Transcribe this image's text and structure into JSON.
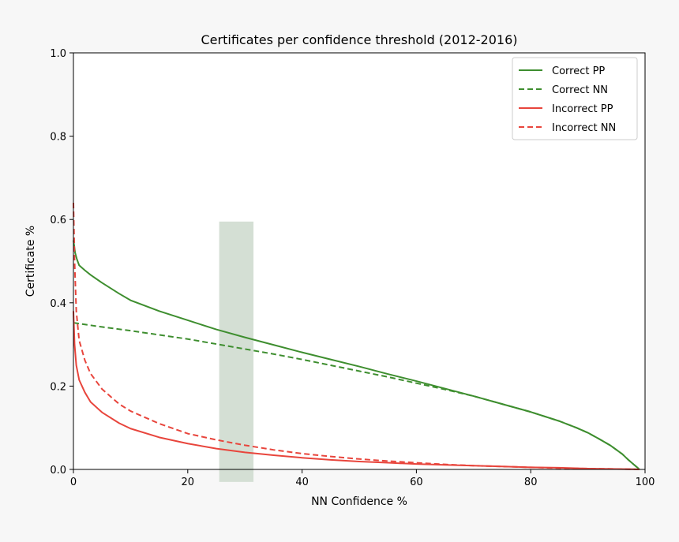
{
  "chart_data": {
    "type": "line",
    "title": "Certificates per confidence threshold (2012-2016)",
    "xlabel": "NN Confidence %",
    "ylabel": "Certificate %",
    "xlim": [
      0,
      100
    ],
    "ylim": [
      0.0,
      1.0
    ],
    "xticks": [
      0,
      20,
      40,
      60,
      80,
      100
    ],
    "xtick_labels": [
      "0",
      "20",
      "40",
      "60",
      "80",
      "100"
    ],
    "yticks": [
      0.0,
      0.2,
      0.4,
      0.6,
      0.8,
      1.0
    ],
    "ytick_labels": [
      "0.0",
      "0.2",
      "0.4",
      "0.6",
      "0.8",
      "1.0"
    ],
    "grid": false,
    "legend_position": "top-right",
    "highlight_band": {
      "x_range": [
        25.5,
        31.5
      ],
      "y_range": [
        -0.03,
        0.595
      ],
      "color": "#d4dfd4"
    },
    "series": [
      {
        "name": "Correct PP",
        "color": "#3e8e2f",
        "style": "solid",
        "x": [
          0,
          0.3,
          0.6,
          1,
          2,
          3,
          5,
          8,
          10,
          15,
          20,
          25,
          30,
          35,
          40,
          45,
          50,
          55,
          60,
          65,
          70,
          75,
          80,
          85,
          88,
          90,
          92,
          94,
          96,
          97,
          98,
          98.7,
          99
        ],
        "y": [
          0.55,
          0.52,
          0.505,
          0.49,
          0.478,
          0.467,
          0.448,
          0.422,
          0.406,
          0.38,
          0.358,
          0.336,
          0.317,
          0.299,
          0.281,
          0.264,
          0.247,
          0.229,
          0.212,
          0.194,
          0.176,
          0.157,
          0.138,
          0.116,
          0.1,
          0.088,
          0.073,
          0.057,
          0.037,
          0.024,
          0.012,
          0.004,
          0.0
        ]
      },
      {
        "name": "Correct NN",
        "color": "#3e8e2f",
        "style": "dashed",
        "x": [
          0,
          0.5,
          1,
          2,
          5,
          10,
          15,
          20,
          25,
          30,
          35,
          40,
          45,
          50,
          55,
          60,
          65,
          70,
          75,
          80,
          85,
          88,
          90,
          92,
          94,
          96,
          97,
          98,
          98.7,
          99
        ],
        "y": [
          0.352,
          0.351,
          0.35,
          0.348,
          0.342,
          0.333,
          0.323,
          0.313,
          0.301,
          0.289,
          0.277,
          0.264,
          0.25,
          0.236,
          0.222,
          0.207,
          0.192,
          0.176,
          0.157,
          0.138,
          0.116,
          0.1,
          0.088,
          0.073,
          0.057,
          0.037,
          0.024,
          0.012,
          0.004,
          0.0
        ]
      },
      {
        "name": "Incorrect PP",
        "color": "#e8453c",
        "style": "solid",
        "x": [
          0,
          0.2,
          0.5,
          1,
          2,
          3,
          5,
          8,
          10,
          15,
          20,
          25,
          30,
          35,
          40,
          45,
          50,
          55,
          60,
          65,
          70,
          75,
          80,
          85,
          90,
          95,
          98,
          99
        ],
        "y": [
          0.38,
          0.3,
          0.25,
          0.215,
          0.185,
          0.162,
          0.137,
          0.111,
          0.098,
          0.077,
          0.062,
          0.05,
          0.041,
          0.034,
          0.028,
          0.023,
          0.019,
          0.016,
          0.013,
          0.011,
          0.009,
          0.007,
          0.005,
          0.004,
          0.002,
          0.001,
          0.0005,
          0.0
        ]
      },
      {
        "name": "Incorrect NN",
        "color": "#e8453c",
        "style": "dashed",
        "x": [
          0,
          0.2,
          0.5,
          1,
          2,
          3,
          5,
          8,
          10,
          15,
          20,
          25,
          30,
          35,
          40,
          45,
          50,
          55,
          60,
          65,
          70,
          75,
          80,
          85,
          90,
          95,
          98,
          99
        ],
        "y": [
          0.64,
          0.5,
          0.38,
          0.31,
          0.262,
          0.23,
          0.193,
          0.157,
          0.14,
          0.11,
          0.086,
          0.071,
          0.058,
          0.047,
          0.038,
          0.031,
          0.025,
          0.02,
          0.016,
          0.012,
          0.009,
          0.007,
          0.005,
          0.003,
          0.002,
          0.001,
          0.0005,
          0.0
        ]
      }
    ]
  }
}
